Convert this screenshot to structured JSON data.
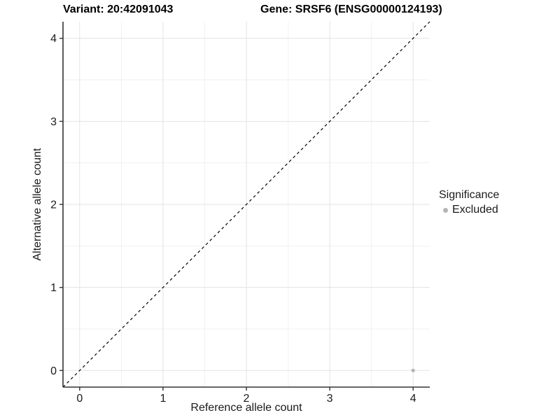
{
  "figure": {
    "title_left": "Variant: 20:42091043",
    "title_right": "Gene: SRSF6 (ENSG00000124193)"
  },
  "chart_data": {
    "type": "scatter",
    "title": "Variant: 20:42091043   Gene: SRSF6 (ENSG00000124193)",
    "xlabel": "Reference allele count",
    "ylabel": "Alternative allele count",
    "xlim": [
      -0.2,
      4.2
    ],
    "ylim": [
      -0.2,
      4.2
    ],
    "x_ticks": [
      0,
      1,
      2,
      3,
      4
    ],
    "y_ticks": [
      0,
      1,
      2,
      3,
      4
    ],
    "x_minor_ticks": [
      0.5,
      1.5,
      2.5,
      3.5
    ],
    "y_minor_ticks": [
      0.5,
      1.5,
      2.5,
      3.5
    ],
    "grid": true,
    "series": [
      {
        "name": "Excluded",
        "color": "#b5b5b5",
        "points": [
          {
            "x": 4,
            "y": 0
          }
        ]
      }
    ],
    "reference_line": {
      "type": "identity",
      "style": "dashed",
      "color": "#000000"
    },
    "legend": {
      "title": "Significance",
      "position": "right",
      "entries": [
        {
          "label": "Excluded",
          "color": "#b5b5b5"
        }
      ]
    },
    "colors": {
      "background": "#ffffff",
      "axis_line": "#333333",
      "tick_mark": "#333333",
      "tick_label": "#1a1a1a",
      "grid_major": "#e3e3e3",
      "grid_minor": "#f1f1f1"
    }
  }
}
